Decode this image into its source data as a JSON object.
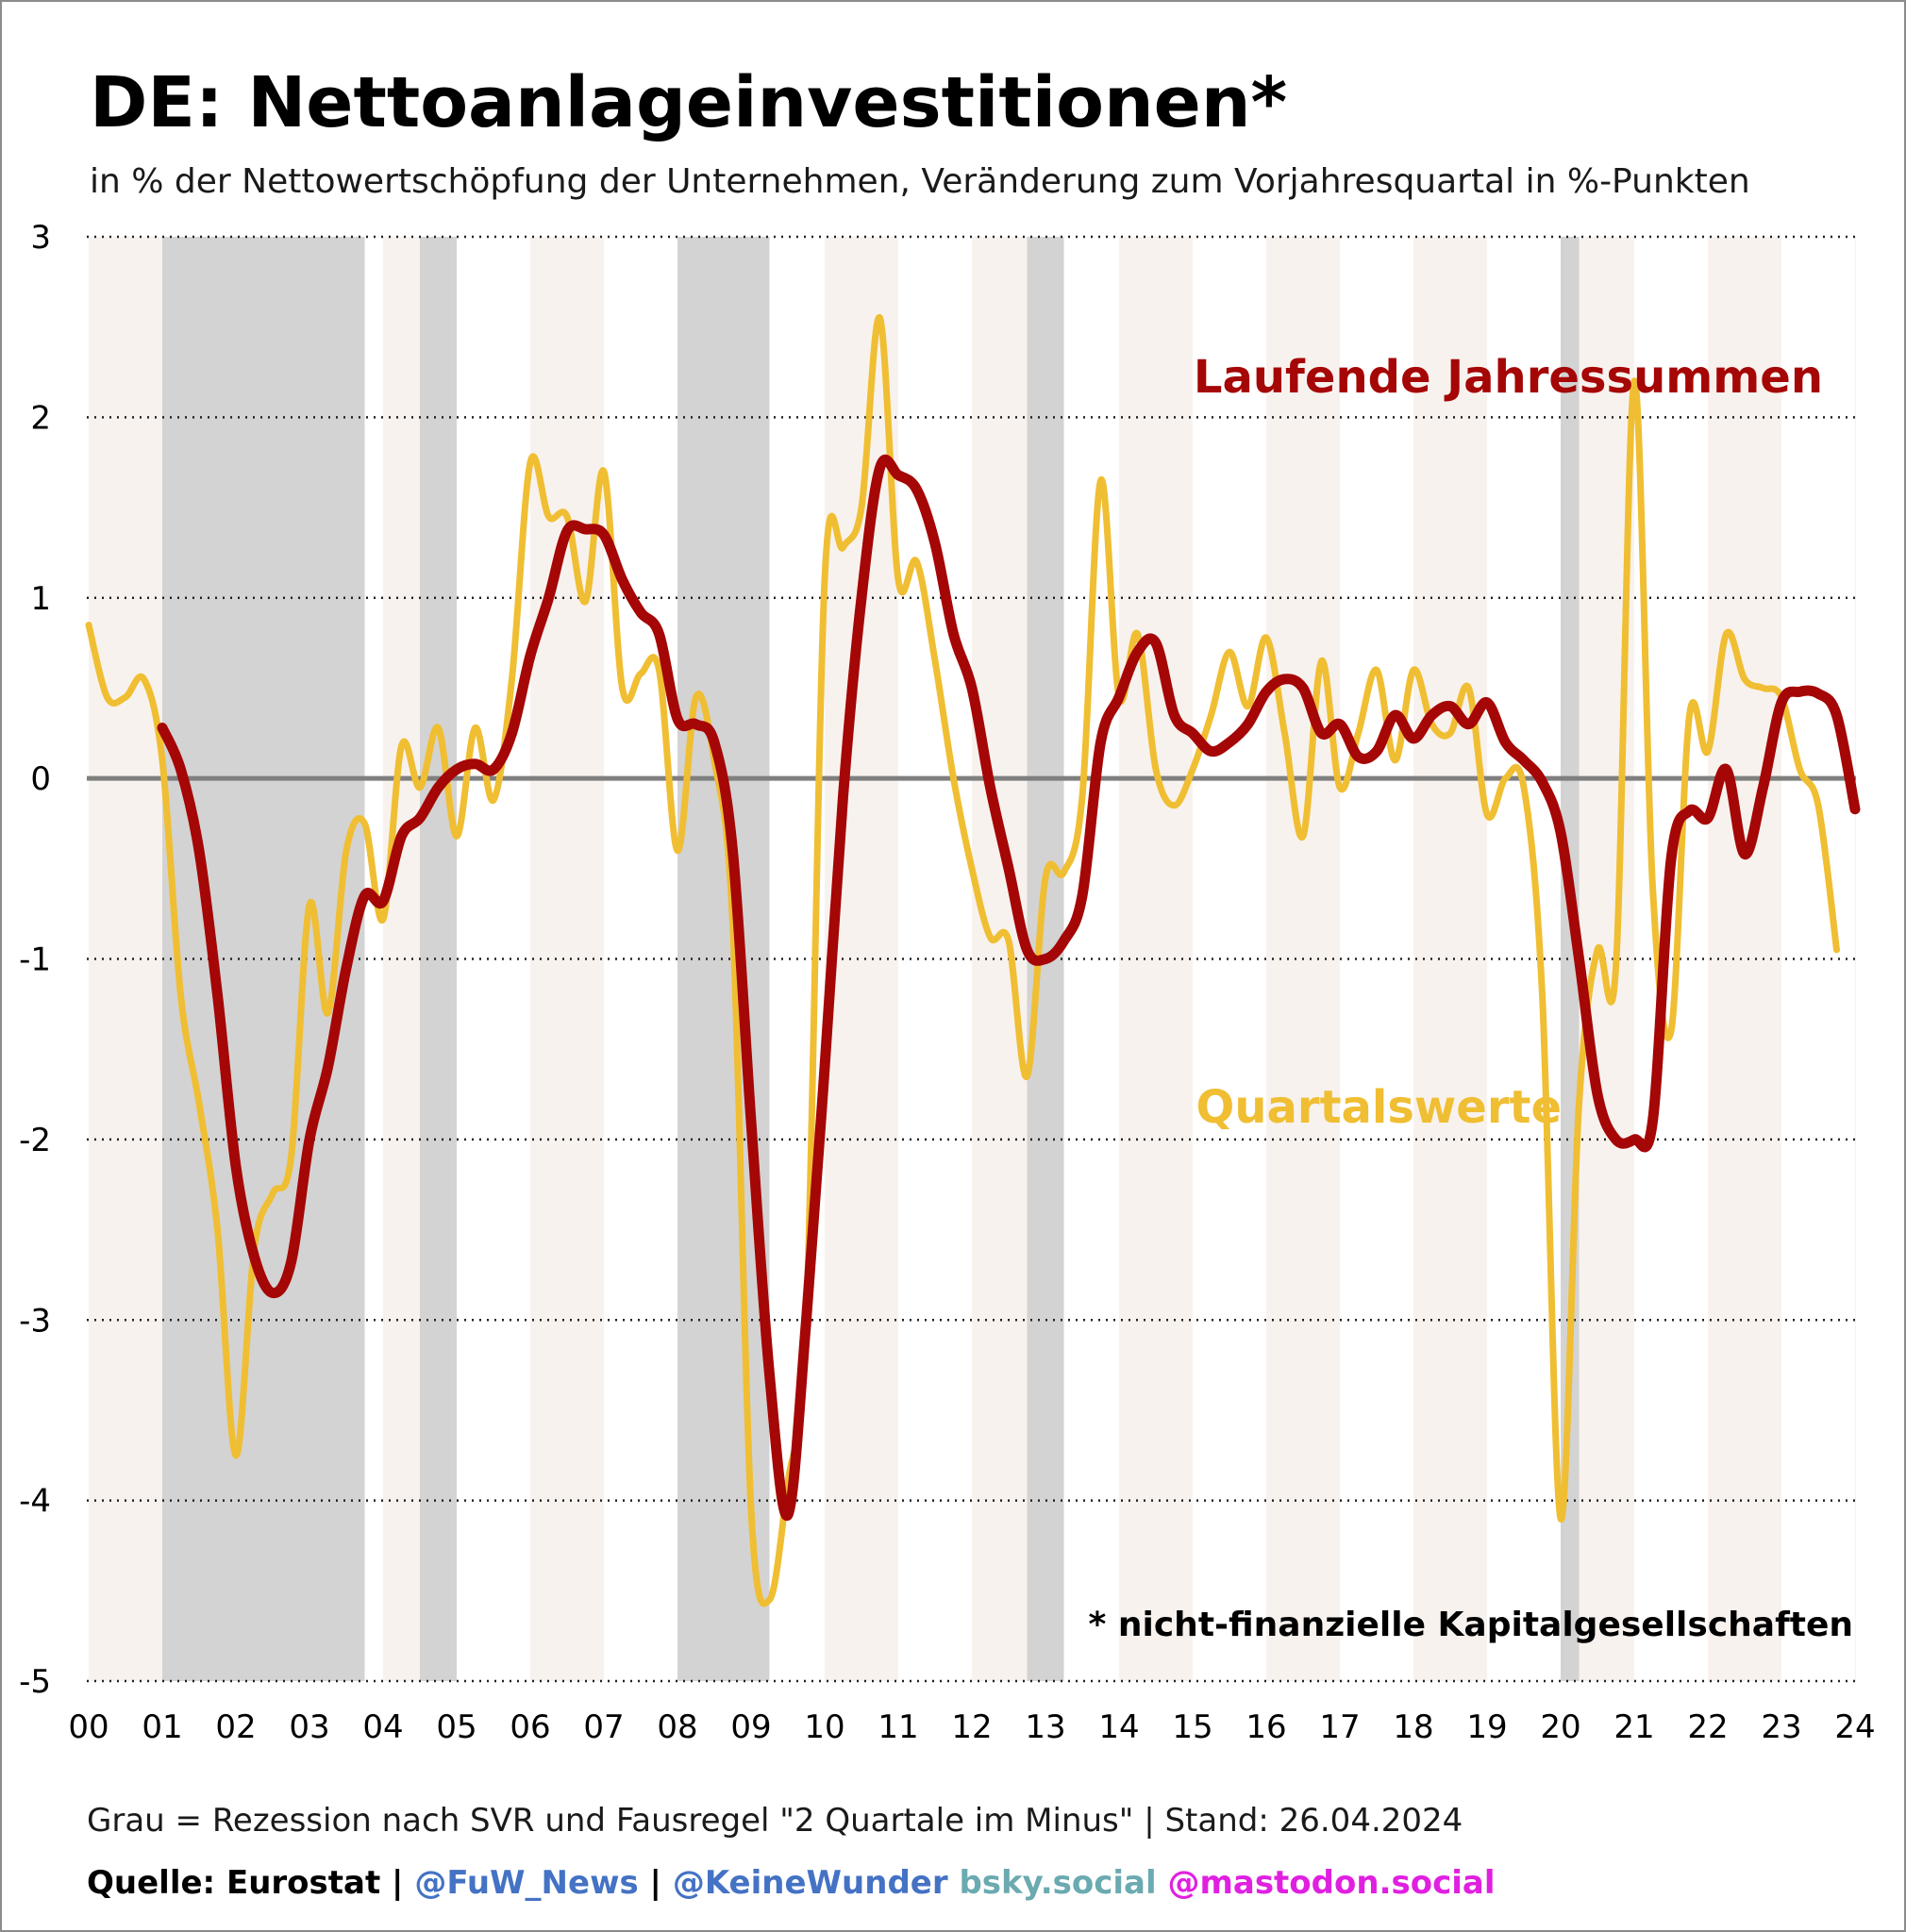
{
  "page": {
    "title": "DE: Nettoanlageinvestitionen*",
    "subtitle": "in % der Nettowertschöpfung der Unternehmen, Veränderung zum Vorjahresquartal in %-Punkten",
    "note": "Grau = Rezession nach SVR und Fausregel \"2 Quartale im Minus\"   | Stand: 26.04.2024",
    "source": {
      "prefix": "Quelle: Eurostat | ",
      "handle1": "@FuW_News",
      "sep1": " | ",
      "handle2": "@KeineWunder",
      "bsky": " bsky.social",
      "mastodon": " @mastodon.social",
      "colors": {
        "prefix": "#000000",
        "handle1": "#4472c4",
        "handle2": "#4472c4",
        "bsky": "#6aaab0",
        "mastodon": "#e020e0"
      }
    }
  },
  "chart_data": {
    "type": "line",
    "title": "DE: Nettoanlageinvestitionen*",
    "subtitle": "in % der Nettowertschöpfung der Unternehmen, Veränderung zum Vorjahresquartal in %-Punkten",
    "xlabel": "",
    "ylabel": "",
    "ylim": [
      -5,
      3
    ],
    "xlim": [
      2000.0,
      2024.25
    ],
    "yticks": [
      3,
      2,
      1,
      0,
      -1,
      -2,
      -3,
      -4,
      -5
    ],
    "ytick_labels": [
      "3",
      "2",
      "1",
      "0",
      "-1",
      "-2",
      "-3",
      "-4",
      "-5"
    ],
    "xticks": [
      2000,
      2001,
      2002,
      2003,
      2004,
      2005,
      2006,
      2007,
      2008,
      2009,
      2010,
      2011,
      2012,
      2013,
      2014,
      2015,
      2016,
      2017,
      2018,
      2019,
      2020,
      2021,
      2022,
      2023,
      2024
    ],
    "xtick_labels": [
      "00",
      "01",
      "02",
      "03",
      "04",
      "05",
      "06",
      "07",
      "08",
      "09",
      "10",
      "11",
      "12",
      "13",
      "14",
      "15",
      "16",
      "17",
      "18",
      "19",
      "20",
      "21",
      "22",
      "23",
      "24"
    ],
    "grid": "horizontal dotted",
    "zero_line": true,
    "recessions": [
      [
        2001.0,
        2003.75
      ],
      [
        2004.5,
        2005.0
      ],
      [
        2008.0,
        2009.25
      ],
      [
        2012.75,
        2013.25
      ],
      [
        2020.0,
        2020.25
      ]
    ],
    "alternating_year_bands": true,
    "colors": {
      "annual": "#a50606",
      "quarterly": "#f0be32",
      "recession": "#d3d3d3",
      "year_band": "#f8f2ee",
      "zero_line": "#7f7f7f",
      "grid": "#222222"
    },
    "series": [
      {
        "name": "Laufende Jahressummen",
        "color": "#a50606",
        "points": [
          [
            2001.0,
            0.28
          ],
          [
            2001.25,
            0.05
          ],
          [
            2001.5,
            -0.4
          ],
          [
            2001.75,
            -1.2
          ],
          [
            2002.0,
            -2.15
          ],
          [
            2002.25,
            -2.65
          ],
          [
            2002.5,
            -2.85
          ],
          [
            2002.75,
            -2.68
          ],
          [
            2003.0,
            -2.0
          ],
          [
            2003.25,
            -1.6
          ],
          [
            2003.5,
            -1.05
          ],
          [
            2003.75,
            -0.65
          ],
          [
            2004.0,
            -0.68
          ],
          [
            2004.25,
            -0.32
          ],
          [
            2004.5,
            -0.22
          ],
          [
            2004.75,
            -0.05
          ],
          [
            2005.0,
            0.05
          ],
          [
            2005.25,
            0.08
          ],
          [
            2005.5,
            0.05
          ],
          [
            2005.75,
            0.25
          ],
          [
            2006.0,
            0.68
          ],
          [
            2006.25,
            1.0
          ],
          [
            2006.5,
            1.37
          ],
          [
            2006.75,
            1.38
          ],
          [
            2007.0,
            1.35
          ],
          [
            2007.25,
            1.1
          ],
          [
            2007.5,
            0.92
          ],
          [
            2007.75,
            0.8
          ],
          [
            2008.0,
            0.33
          ],
          [
            2008.25,
            0.3
          ],
          [
            2008.5,
            0.2
          ],
          [
            2008.75,
            -0.4
          ],
          [
            2009.0,
            -1.9
          ],
          [
            2009.25,
            -3.3
          ],
          [
            2009.5,
            -4.08
          ],
          [
            2009.75,
            -3.0
          ],
          [
            2010.0,
            -1.6
          ],
          [
            2010.25,
            -0.1
          ],
          [
            2010.5,
            1.0
          ],
          [
            2010.75,
            1.72
          ],
          [
            2011.0,
            1.68
          ],
          [
            2011.25,
            1.6
          ],
          [
            2011.5,
            1.3
          ],
          [
            2011.75,
            0.8
          ],
          [
            2012.0,
            0.5
          ],
          [
            2012.25,
            -0.05
          ],
          [
            2012.5,
            -0.5
          ],
          [
            2012.75,
            -0.95
          ],
          [
            2013.0,
            -1.0
          ],
          [
            2013.25,
            -0.9
          ],
          [
            2013.5,
            -0.65
          ],
          [
            2013.75,
            0.2
          ],
          [
            2014.0,
            0.45
          ],
          [
            2014.25,
            0.7
          ],
          [
            2014.5,
            0.75
          ],
          [
            2014.75,
            0.35
          ],
          [
            2015.0,
            0.25
          ],
          [
            2015.25,
            0.15
          ],
          [
            2015.5,
            0.2
          ],
          [
            2015.75,
            0.3
          ],
          [
            2016.0,
            0.48
          ],
          [
            2016.25,
            0.55
          ],
          [
            2016.5,
            0.5
          ],
          [
            2016.75,
            0.25
          ],
          [
            2017.0,
            0.3
          ],
          [
            2017.25,
            0.12
          ],
          [
            2017.5,
            0.15
          ],
          [
            2017.75,
            0.35
          ],
          [
            2018.0,
            0.22
          ],
          [
            2018.25,
            0.35
          ],
          [
            2018.5,
            0.4
          ],
          [
            2018.75,
            0.3
          ],
          [
            2019.0,
            0.42
          ],
          [
            2019.25,
            0.2
          ],
          [
            2019.5,
            0.1
          ],
          [
            2019.75,
            -0.02
          ],
          [
            2020.0,
            -0.3
          ],
          [
            2020.25,
            -1.0
          ],
          [
            2020.5,
            -1.75
          ],
          [
            2020.75,
            -2.0
          ],
          [
            2021.0,
            -2.0
          ],
          [
            2021.25,
            -1.9
          ],
          [
            2021.5,
            -0.45
          ],
          [
            2021.75,
            -0.18
          ],
          [
            2022.0,
            -0.22
          ],
          [
            2022.25,
            0.05
          ],
          [
            2022.5,
            -0.42
          ],
          [
            2022.75,
            -0.05
          ],
          [
            2023.0,
            0.42
          ],
          [
            2023.25,
            0.48
          ],
          [
            2023.5,
            0.47
          ],
          [
            2023.75,
            0.35
          ],
          [
            2024.0,
            -0.17
          ]
        ]
      },
      {
        "name": "Quartalswerte",
        "color": "#f0be32",
        "points": [
          [
            2000.0,
            0.85
          ],
          [
            2000.25,
            0.45
          ],
          [
            2000.5,
            0.45
          ],
          [
            2000.75,
            0.55
          ],
          [
            2001.0,
            0.1
          ],
          [
            2001.25,
            -1.2
          ],
          [
            2001.5,
            -1.8
          ],
          [
            2001.75,
            -2.5
          ],
          [
            2002.0,
            -3.75
          ],
          [
            2002.25,
            -2.6
          ],
          [
            2002.5,
            -2.3
          ],
          [
            2002.75,
            -2.1
          ],
          [
            2003.0,
            -0.7
          ],
          [
            2003.25,
            -1.3
          ],
          [
            2003.5,
            -0.4
          ],
          [
            2003.75,
            -0.25
          ],
          [
            2004.0,
            -0.78
          ],
          [
            2004.25,
            0.18
          ],
          [
            2004.5,
            -0.05
          ],
          [
            2004.75,
            0.28
          ],
          [
            2005.0,
            -0.32
          ],
          [
            2005.25,
            0.28
          ],
          [
            2005.5,
            -0.12
          ],
          [
            2005.75,
            0.55
          ],
          [
            2006.0,
            1.75
          ],
          [
            2006.25,
            1.45
          ],
          [
            2006.5,
            1.45
          ],
          [
            2006.75,
            0.98
          ],
          [
            2007.0,
            1.7
          ],
          [
            2007.25,
            0.5
          ],
          [
            2007.5,
            0.58
          ],
          [
            2007.75,
            0.6
          ],
          [
            2008.0,
            -0.4
          ],
          [
            2008.25,
            0.45
          ],
          [
            2008.5,
            0.1
          ],
          [
            2008.75,
            -0.8
          ],
          [
            2009.0,
            -4.05
          ],
          [
            2009.25,
            -4.55
          ],
          [
            2009.5,
            -3.9
          ],
          [
            2009.75,
            -3.0
          ],
          [
            2010.0,
            1.1
          ],
          [
            2010.25,
            1.28
          ],
          [
            2010.5,
            1.5
          ],
          [
            2010.75,
            2.55
          ],
          [
            2011.0,
            1.1
          ],
          [
            2011.25,
            1.2
          ],
          [
            2011.5,
            0.65
          ],
          [
            2011.75,
            0.0
          ],
          [
            2012.0,
            -0.5
          ],
          [
            2012.25,
            -0.88
          ],
          [
            2012.5,
            -0.9
          ],
          [
            2012.75,
            -1.65
          ],
          [
            2013.0,
            -0.55
          ],
          [
            2013.25,
            -0.52
          ],
          [
            2013.5,
            -0.1
          ],
          [
            2013.75,
            1.65
          ],
          [
            2014.0,
            0.45
          ],
          [
            2014.25,
            0.8
          ],
          [
            2014.5,
            0.05
          ],
          [
            2014.75,
            -0.15
          ],
          [
            2015.0,
            0.05
          ],
          [
            2015.25,
            0.35
          ],
          [
            2015.5,
            0.7
          ],
          [
            2015.75,
            0.4
          ],
          [
            2016.0,
            0.78
          ],
          [
            2016.25,
            0.25
          ],
          [
            2016.5,
            -0.32
          ],
          [
            2016.75,
            0.65
          ],
          [
            2017.0,
            -0.05
          ],
          [
            2017.25,
            0.25
          ],
          [
            2017.5,
            0.6
          ],
          [
            2017.75,
            0.1
          ],
          [
            2018.0,
            0.6
          ],
          [
            2018.25,
            0.3
          ],
          [
            2018.5,
            0.25
          ],
          [
            2018.75,
            0.5
          ],
          [
            2019.0,
            -0.2
          ],
          [
            2019.25,
            0.0
          ],
          [
            2019.5,
            -0.05
          ],
          [
            2019.75,
            -1.2
          ],
          [
            2020.0,
            -4.1
          ],
          [
            2020.25,
            -1.8
          ],
          [
            2020.5,
            -0.95
          ],
          [
            2020.75,
            -1.05
          ],
          [
            2021.0,
            2.2
          ],
          [
            2021.25,
            -0.6
          ],
          [
            2021.5,
            -1.4
          ],
          [
            2021.75,
            0.35
          ],
          [
            2022.0,
            0.15
          ],
          [
            2022.25,
            0.8
          ],
          [
            2022.5,
            0.55
          ],
          [
            2022.75,
            0.5
          ],
          [
            2023.0,
            0.45
          ],
          [
            2023.25,
            0.05
          ],
          [
            2023.5,
            -0.15
          ],
          [
            2023.75,
            -0.95
          ]
        ]
      }
    ],
    "labels": {
      "annual": "Laufende Jahressummen",
      "quarterly": "Quartalswerte"
    },
    "annotation": "* nicht-finanzielle Kapitalgesellschaften"
  }
}
